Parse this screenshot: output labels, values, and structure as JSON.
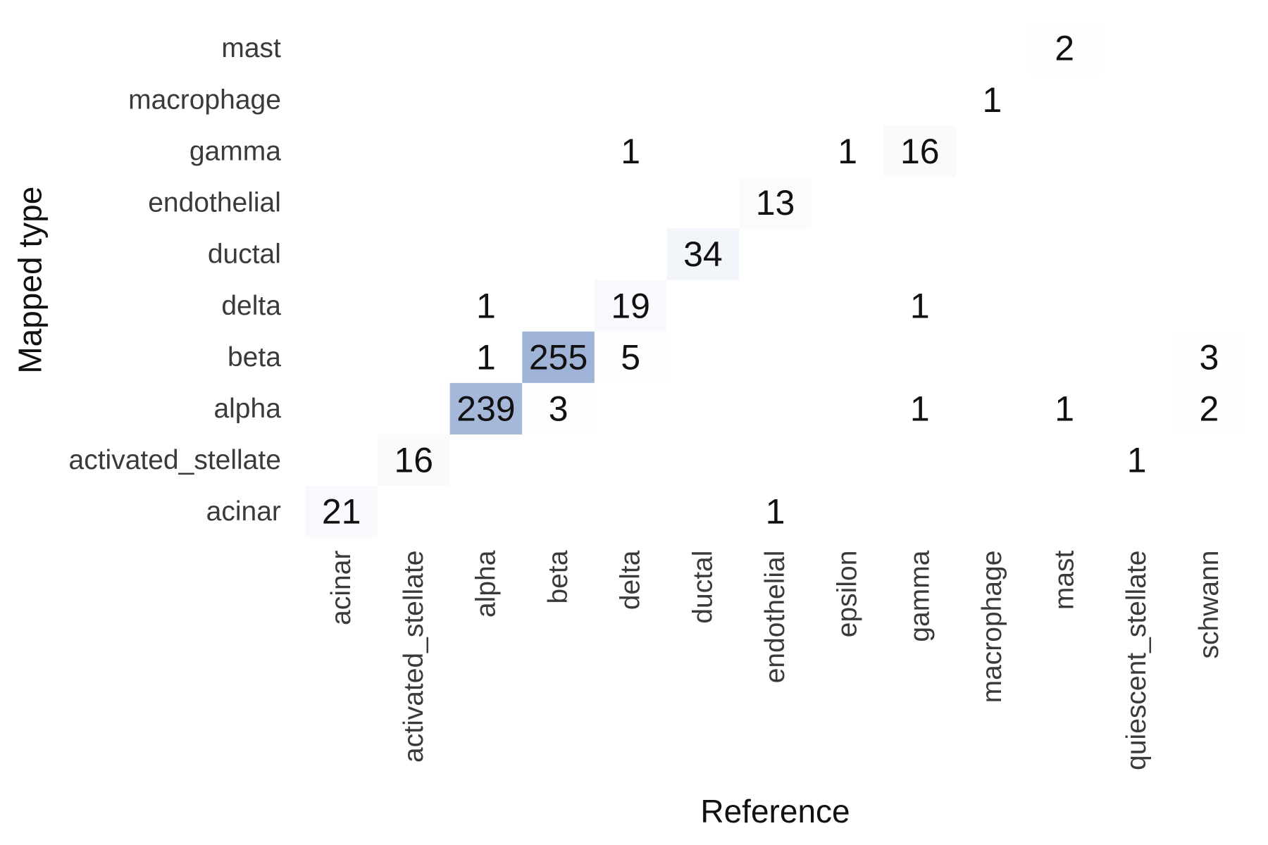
{
  "chart_data": {
    "type": "heatmap",
    "title": "",
    "xlabel": "Reference",
    "ylabel": "Mapped type",
    "x_categories": [
      "acinar",
      "activated_stellate",
      "alpha",
      "beta",
      "delta",
      "ductal",
      "endothelial",
      "epsilon",
      "gamma",
      "macrophage",
      "mast",
      "quiescent_stellate",
      "schwann"
    ],
    "y_categories": [
      "mast",
      "macrophage",
      "gamma",
      "endothelial",
      "ductal",
      "delta",
      "beta",
      "alpha",
      "activated_stellate",
      "acinar"
    ],
    "values": [
      [
        null,
        null,
        null,
        null,
        null,
        null,
        null,
        null,
        null,
        null,
        2,
        null,
        null
      ],
      [
        null,
        null,
        null,
        null,
        null,
        null,
        null,
        null,
        null,
        1,
        null,
        null,
        null
      ],
      [
        null,
        null,
        null,
        null,
        1,
        null,
        null,
        1,
        16,
        null,
        null,
        null,
        null
      ],
      [
        null,
        null,
        null,
        null,
        null,
        null,
        13,
        null,
        null,
        null,
        null,
        null,
        null
      ],
      [
        null,
        null,
        null,
        null,
        null,
        34,
        null,
        null,
        null,
        null,
        null,
        null,
        null
      ],
      [
        null,
        null,
        1,
        null,
        19,
        null,
        null,
        null,
        1,
        null,
        null,
        null,
        null
      ],
      [
        null,
        null,
        1,
        255,
        5,
        null,
        null,
        null,
        null,
        null,
        null,
        null,
        3
      ],
      [
        null,
        null,
        239,
        3,
        null,
        null,
        null,
        null,
        1,
        null,
        1,
        null,
        2
      ],
      [
        null,
        16,
        null,
        null,
        null,
        null,
        null,
        null,
        null,
        null,
        null,
        1,
        null
      ],
      [
        21,
        null,
        null,
        null,
        null,
        null,
        1,
        null,
        null,
        null,
        null,
        null,
        null
      ]
    ],
    "colormap": {
      "low": "#ffffff",
      "high": "#9fb3d6",
      "vmin": 0,
      "vmax": 255
    },
    "grid": false,
    "legend": "none",
    "colorbar": false
  }
}
